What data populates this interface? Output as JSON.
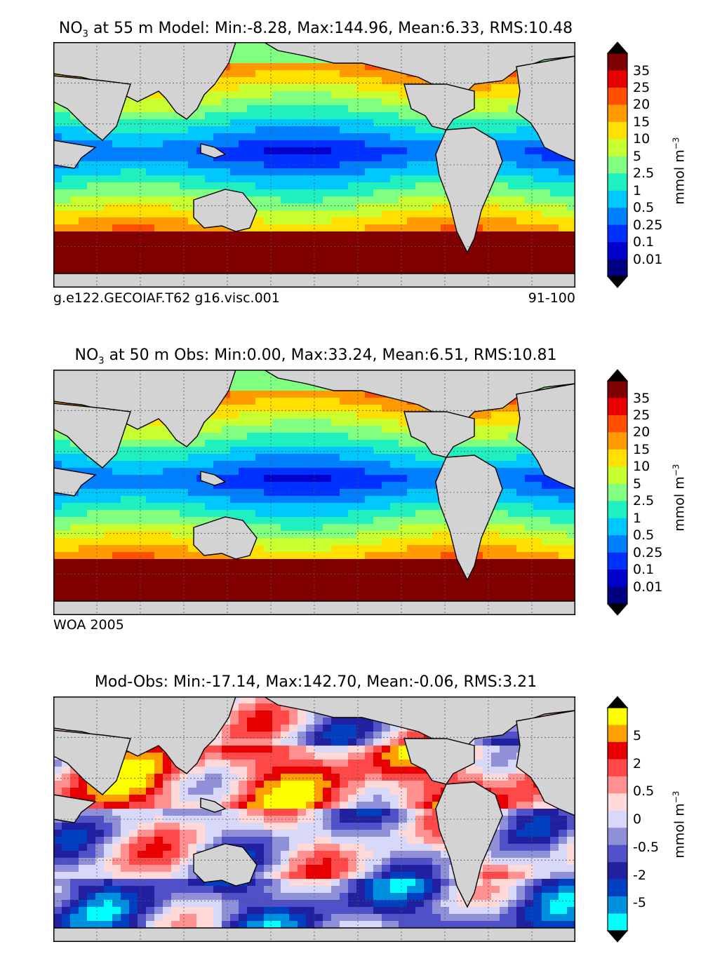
{
  "chart_data": [
    {
      "type": "heatmap",
      "title_prefix": "NO",
      "title_sub": "3",
      "title_rest": " at 55 m Model: Min:-8.28, Max:144.96, Mean:6.33, RMS:10.48",
      "caption_left": "g.e122.GECOIAF.T62 g16.visc.001",
      "caption_right": "91-100",
      "colorbar": {
        "unit_base": "mmol m",
        "unit_sup": "−3",
        "ticks": [
          "35",
          "25",
          "20",
          "15",
          "10",
          "5",
          "2.5",
          "1",
          "0.5",
          "0.25",
          "0.1",
          "0.01"
        ],
        "colors": [
          "#000080",
          "#0000cd",
          "#0032ff",
          "#0080ff",
          "#00c8ff",
          "#20f0c0",
          "#80ff80",
          "#c8ff30",
          "#ffe000",
          "#ff9a00",
          "#ff5000",
          "#e80000",
          "#800000"
        ],
        "extend": "both"
      }
    },
    {
      "type": "heatmap",
      "title_prefix": "NO",
      "title_sub": "3",
      "title_rest": " at 50 m Obs: Min:0.00, Max:33.24, Mean:6.51, RMS:10.81",
      "caption_left": "WOA 2005",
      "caption_right": "",
      "colorbar": {
        "unit_base": "mmol m",
        "unit_sup": "−3",
        "ticks": [
          "35",
          "25",
          "20",
          "15",
          "10",
          "5",
          "2.5",
          "1",
          "0.5",
          "0.25",
          "0.1",
          "0.01"
        ],
        "colors": [
          "#000080",
          "#0000cd",
          "#0032ff",
          "#0080ff",
          "#00c8ff",
          "#20f0c0",
          "#80ff80",
          "#c8ff30",
          "#ffe000",
          "#ff9a00",
          "#ff5000",
          "#e80000",
          "#800000"
        ],
        "extend": "both"
      }
    },
    {
      "type": "heatmap",
      "title_prefix": "",
      "title_sub": "",
      "title_rest": "Mod-Obs: Min:-17.14, Max:142.70, Mean:-0.06, RMS:3.21",
      "caption_left": "",
      "caption_right": "",
      "colorbar": {
        "unit_base": "mmol m",
        "unit_sup": "−3",
        "ticks": [
          "5",
          "2",
          "0.5",
          "0",
          "-0.5",
          "-2",
          "-5"
        ],
        "colors": [
          "#00ffff",
          "#0090e0",
          "#0040c0",
          "#2020a0",
          "#5050c8",
          "#9090d8",
          "#d8d8f8",
          "#ffd8d8",
          "#ff9090",
          "#ff4848",
          "#e80000",
          "#ffa000",
          "#ffff00"
        ],
        "extend": "both"
      }
    }
  ]
}
